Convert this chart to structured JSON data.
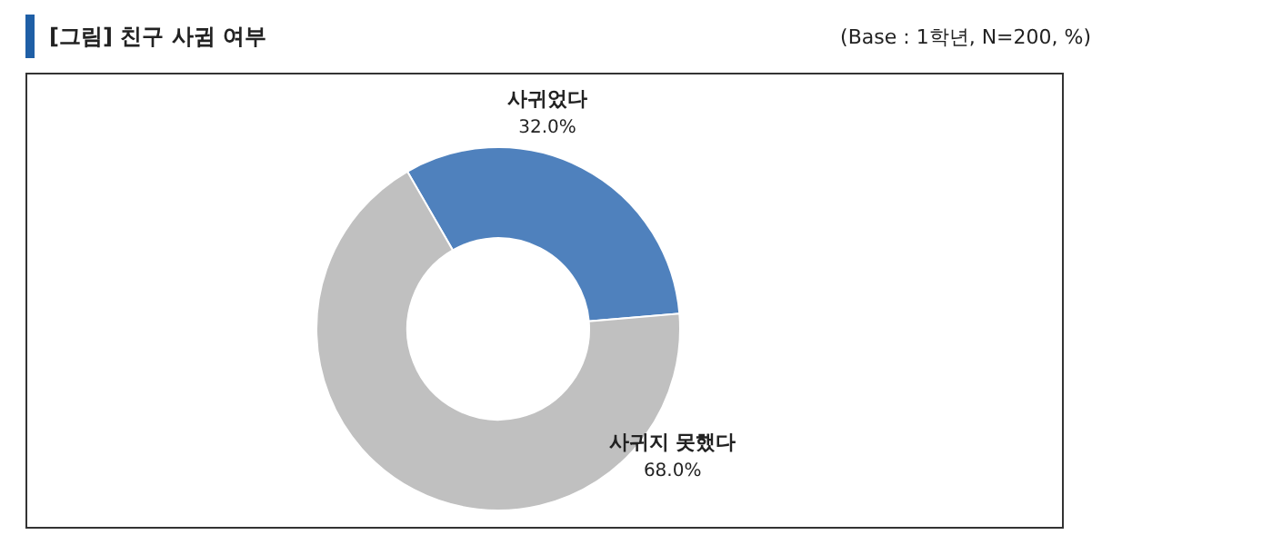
{
  "chart_data": {
    "type": "donut",
    "title": "[그림] 친구 사귐 여부",
    "subtitle": "(Base : 1학년, N=200, %)",
    "categories": [
      "사귀었다",
      "사귀지 못했다"
    ],
    "values": [
      32.0,
      68.0
    ],
    "colors": [
      "#4f81bd",
      "#c0c0c0"
    ],
    "value_labels": [
      "32.0%",
      "68.0%"
    ]
  }
}
